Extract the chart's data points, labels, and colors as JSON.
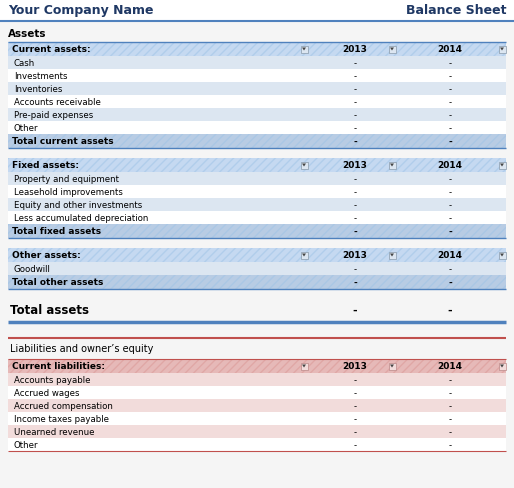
{
  "title_left": "Your Company Name",
  "title_right": "Balance Sheet",
  "bg_color": "#f5f5f5",
  "header_bar_color": "#ffffff",
  "separator_blue": "#4f81bd",
  "separator_pink": "#c0504d",
  "blue_hdr_bg": "#c5d9f1",
  "blue_hdr_hatch": "#9dc3e6",
  "blue_row_alt": "#dce6f1",
  "blue_total_bg": "#b8cce4",
  "pink_hdr_bg": "#e6b9b8",
  "pink_hdr_hatch": "#da9694",
  "pink_row_alt": "#f2dcdb",
  "pink_total_bg": "#e6b9b8",
  "assets_label": "Assets",
  "total_assets_label": "Total assets",
  "liabilities_label": "Liabilities and owner’s equity",
  "year1": "2013",
  "year2": "2014",
  "dash": "-",
  "sections_blue": [
    {
      "header": "Current assets:",
      "rows": [
        "Cash",
        "Investments",
        "Inventories",
        "Accounts receivable",
        "Pre-paid expenses",
        "Other"
      ],
      "total": "Total current assets"
    },
    {
      "header": "Fixed assets:",
      "rows": [
        "Property and equipment",
        "Leasehold improvements",
        "Equity and other investments",
        "Less accumulated depreciation"
      ],
      "total": "Total fixed assets"
    },
    {
      "header": "Other assets:",
      "rows": [
        "Goodwill"
      ],
      "total": "Total other assets"
    }
  ],
  "sections_pink": [
    {
      "header": "Current liabilities:",
      "rows": [
        "Accounts payable",
        "Accrued wages",
        "Accrued compensation",
        "Income taxes payable",
        "Unearned revenue",
        "Other"
      ],
      "total": null
    }
  ]
}
